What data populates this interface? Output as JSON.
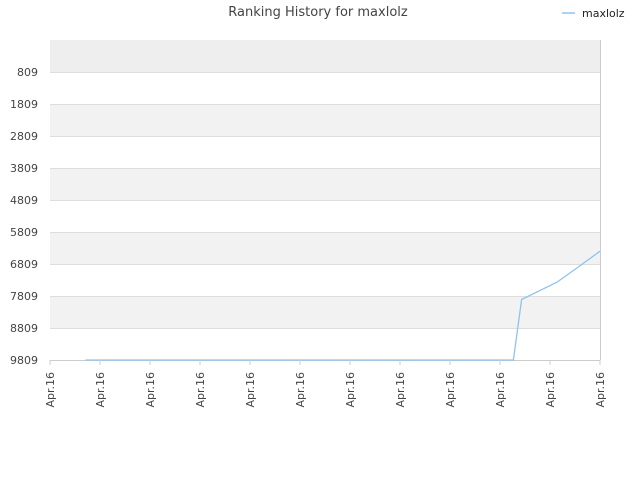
{
  "chart_data": {
    "type": "line",
    "title": "Ranking History for maxlolz",
    "xlabel": "",
    "ylabel": "",
    "y_inverted": true,
    "ylim": [
      9809,
      -191
    ],
    "y_ticks": [
      809,
      1809,
      2809,
      3809,
      4809,
      5809,
      6809,
      7809,
      8809,
      9809
    ],
    "x_tick_labels": [
      "Apr.16",
      "Apr.16",
      "Apr.16",
      "Apr.16",
      "Apr.16",
      "Apr.16",
      "Apr.16",
      "Apr.16",
      "Apr.16",
      "Apr.16",
      "Apr.16",
      "Apr.16"
    ],
    "grid": true,
    "legend_position": "top-right",
    "series": [
      {
        "name": "maxlolz",
        "color": "#90c3ee",
        "x": [
          0.0645,
          0.8425,
          0.8575,
          0.9225,
          0.9545,
          1.0
        ],
        "values": [
          9809,
          9809,
          7919,
          7369,
          6979,
          6409
        ]
      }
    ]
  },
  "colors": {
    "band_odd": "#f2f2f2",
    "band_top": "#eeeeee",
    "band_even": "#ffffff",
    "gridline": "#dddddd",
    "axis": "#cccccc",
    "text": "#444444"
  }
}
